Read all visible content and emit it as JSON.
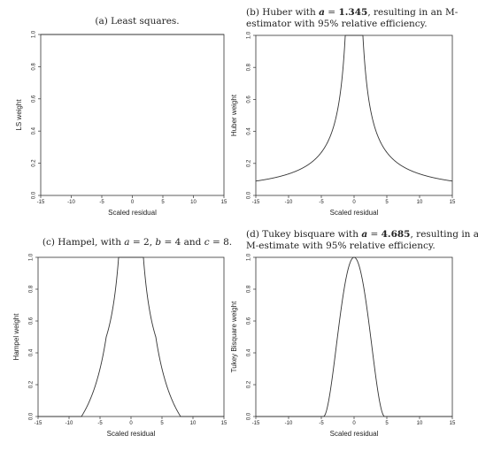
{
  "chart_data": [
    {
      "type": "line",
      "caption": "(a) Least squares.",
      "xlabel": "Scaled residual",
      "ylabel": "LS weight",
      "xlim": [
        -15,
        15
      ],
      "ylim": [
        0,
        1
      ],
      "xticks": [
        -15,
        -10,
        -5,
        0,
        5,
        10,
        15
      ],
      "yticks": [
        0.0,
        0.2,
        0.4,
        0.6,
        0.8,
        1.0
      ],
      "xtick_labels": [
        "-15",
        "-10",
        "-5",
        "0",
        "5",
        "10",
        "15"
      ],
      "ytick_labels": [
        "0.0",
        "0.2",
        "0.4",
        "0.6",
        "0.8",
        "1.0"
      ],
      "series": [
        {
          "function": "least-squares"
        }
      ]
    },
    {
      "type": "line",
      "caption": "(b) Huber with a = 1.345, resulting in an M-estimator with 95% relative efficiency.",
      "caption_lines": [
        "(b) Huber with ",
        "a",
        " = ",
        "1.345",
        ", resulting in an M-",
        "estimator with 95% relative efficiency."
      ],
      "xlabel": "Scaled residual",
      "ylabel": "Huber weight",
      "xlim": [
        -15,
        15
      ],
      "ylim": [
        0,
        1
      ],
      "xticks": [
        -15,
        -10,
        -5,
        0,
        5,
        10,
        15
      ],
      "yticks": [
        0.0,
        0.2,
        0.4,
        0.6,
        0.8,
        1.0
      ],
      "xtick_labels": [
        "-15",
        "-10",
        "-5",
        "0",
        "5",
        "10",
        "15"
      ],
      "ytick_labels": [
        "0.0",
        "0.2",
        "0.4",
        "0.6",
        "0.8",
        "1.0"
      ],
      "series": [
        {
          "function": "huber",
          "a": 1.345
        }
      ]
    },
    {
      "type": "line",
      "caption": "(c) Hampel, with a = 2, b = 4 and c = 8.",
      "caption_parts": [
        "(c) Hampel, with ",
        "a",
        " = 2, ",
        "b",
        " = 4 and ",
        "c",
        " = 8."
      ],
      "xlabel": "Scaled residual",
      "ylabel": "Hampel weight",
      "xlim": [
        -15,
        15
      ],
      "ylim": [
        0,
        1
      ],
      "xticks": [
        -15,
        -10,
        -5,
        0,
        5,
        10,
        15
      ],
      "yticks": [
        0.0,
        0.2,
        0.4,
        0.6,
        0.8,
        1.0
      ],
      "xtick_labels": [
        "-15",
        "-10",
        "-5",
        "0",
        "5",
        "10",
        "15"
      ],
      "ytick_labels": [
        "0.0",
        "0.2",
        "0.4",
        "0.6",
        "0.8",
        "1.0"
      ],
      "series": [
        {
          "function": "hampel",
          "a": 2,
          "b": 4,
          "c": 8
        }
      ]
    },
    {
      "type": "line",
      "caption": "(d) Tukey bisquare with a = 4.685, resulting in an M-estimate with 95% relative efficiency.",
      "caption_lines": [
        "(d) Tukey bisquare with ",
        "a",
        " = ",
        "4.685",
        ", resulting in an",
        "M-estimate with 95% relative efficiency."
      ],
      "xlabel": "Scaled residual",
      "ylabel": "Tukey Bisquare weight",
      "xlim": [
        -15,
        15
      ],
      "ylim": [
        0,
        1
      ],
      "xticks": [
        -15,
        -10,
        -5,
        0,
        5,
        10,
        15
      ],
      "yticks": [
        0.0,
        0.2,
        0.4,
        0.6,
        0.8,
        1.0
      ],
      "xtick_labels": [
        "-15",
        "-10",
        "-5",
        "0",
        "5",
        "10",
        "15"
      ],
      "ytick_labels": [
        "0.0",
        "0.2",
        "0.4",
        "0.6",
        "0.8",
        "1.0"
      ],
      "series": [
        {
          "function": "tukey-bisquare",
          "a": 4.685
        }
      ]
    }
  ]
}
